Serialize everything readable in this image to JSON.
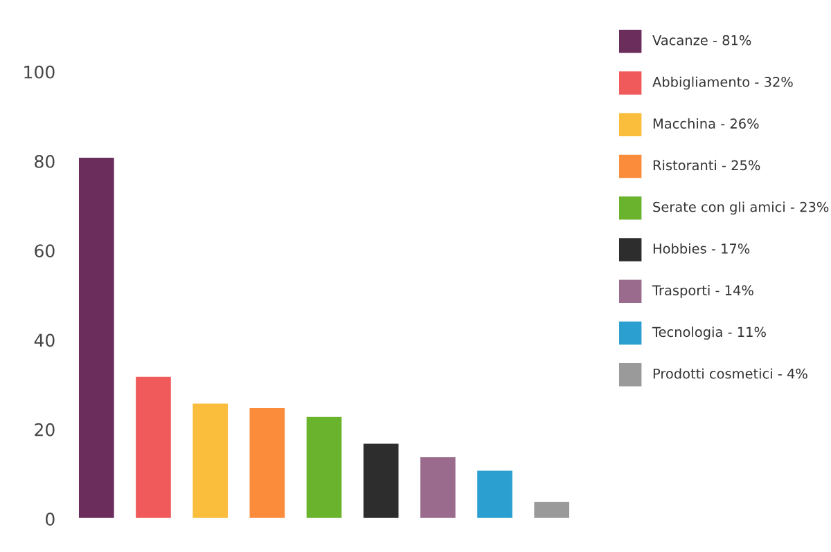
{
  "chart_data": {
    "type": "bar",
    "categories": [
      null,
      null,
      null,
      null,
      null,
      null,
      null,
      null,
      null
    ],
    "values": [
      81,
      32,
      26,
      25,
      23,
      17,
      14,
      11,
      4
    ],
    "colors": [
      "#6b2d5c",
      "#f05a5a",
      "#fbbd3c",
      "#fb8c3c",
      "#6ab42d",
      "#2d2d2d",
      "#9b6b8e",
      "#2a9fd0",
      "#9a9a9a"
    ],
    "annotations": [
      "Vacanze - 81%",
      "Abbigliamento - 32%",
      "Macchina - 26%",
      "Ristoranti - 25%",
      "Serate con gli amici - 23%",
      "Hobbies - 17%",
      "Trasporti - 14%",
      "Tecnologia - 11%",
      "Prodotti cosmetici - 4%"
    ],
    "ylim": [
      0,
      100
    ],
    "yticks": [
      0,
      20,
      40,
      60,
      80,
      100
    ],
    "grid": false
  }
}
